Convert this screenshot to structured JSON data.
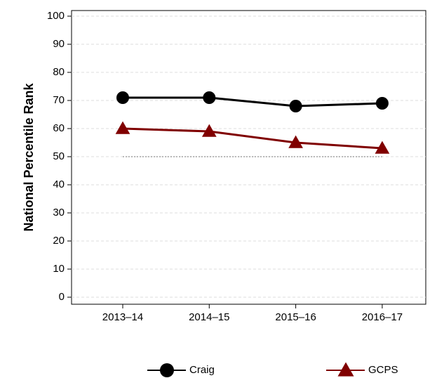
{
  "chart_data": {
    "type": "line",
    "y_label": "National Percentile Rank",
    "categories": [
      "2013–14",
      "2014–15",
      "2015–16",
      "2016–17"
    ],
    "series": [
      {
        "name": "Craig",
        "color": "#000000",
        "marker": "circle",
        "values": [
          71,
          71,
          68,
          69
        ]
      },
      {
        "name": "GCPS",
        "color": "#800000",
        "marker": "triangle",
        "values": [
          60,
          59,
          55,
          53
        ]
      }
    ],
    "reference_line": 50,
    "ylim": [
      -2.5,
      102
    ],
    "yticks": [
      0,
      10,
      20,
      30,
      40,
      50,
      60,
      70,
      80,
      90,
      100
    ],
    "grid": true,
    "legend": "bottom"
  }
}
